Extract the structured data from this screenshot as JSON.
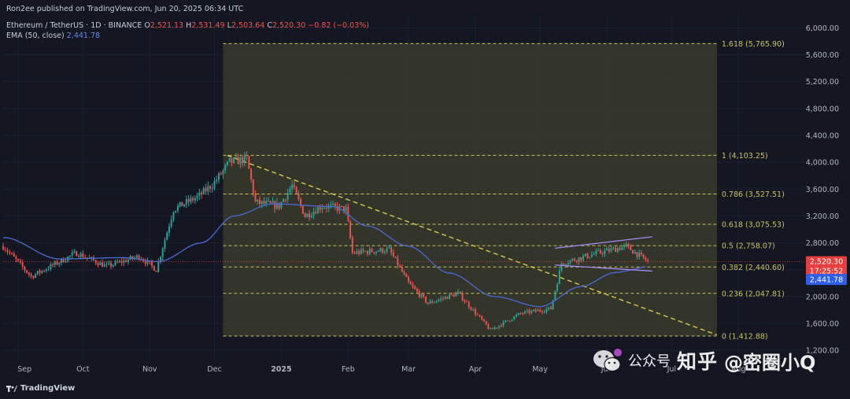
{
  "header": {
    "publish_line": "Ron2ee published on TradingView.com, Jun 20, 2025 06:34 UTC",
    "symbol": "Ethereum / TetherUS · 1D · BINANCE",
    "ohlc": {
      "o_label": "O",
      "o": "2,521.13",
      "h_label": "H",
      "h": "2,531.49",
      "l_label": "L",
      "l": "2,503.64",
      "c_label": "C",
      "c": "2,520.30",
      "change": "−0.82 (−0.03%)"
    },
    "ema_label": "EMA (50, close)",
    "ema_value": "2,441.78"
  },
  "footer": {
    "brand": "TradingView"
  },
  "watermark": {
    "text": "知乎",
    "handle": "@密圈小Q",
    "app": "公众号"
  },
  "colors": {
    "background": "#141722",
    "up": "#26a69a",
    "down": "#ef5350",
    "ema": "#4a6bd6",
    "fib_line": "#c9c35a",
    "fib_box": "#3a3b2c",
    "trend_line": "#d8c84e",
    "channel": "#a78bfa",
    "price_label": "#e83e3e",
    "ema_label": "#2f5ee8"
  },
  "chart_data": {
    "type": "candlestick",
    "title": "Ethereum / TetherUS · 1D · BINANCE",
    "yaxis": {
      "ticks": [
        1200,
        1600,
        2000,
        2400,
        2800,
        3200,
        3600,
        4000,
        4400,
        4800,
        5200,
        5600,
        6000
      ],
      "tick_labels": [
        "1,200.00",
        "1,600.00",
        "2,000.00",
        "2,400.00",
        "2,800.00",
        "3,200.00",
        "3,600.00",
        "4,000.00",
        "4,400.00",
        "4,800.00",
        "5,200.00",
        "5,600.00",
        "6,000.00"
      ],
      "range": [
        1050,
        6180
      ]
    },
    "xaxis": {
      "range": [
        "2024-08-25",
        "2025-08-25"
      ],
      "ticks": [
        {
          "date": "2024-09-01",
          "label": "Sep",
          "bold": false
        },
        {
          "date": "2024-10-01",
          "label": "Oct",
          "bold": false
        },
        {
          "date": "2024-11-01",
          "label": "Nov",
          "bold": false
        },
        {
          "date": "2024-12-01",
          "label": "Dec",
          "bold": false
        },
        {
          "date": "2025-01-01",
          "label": "2025",
          "bold": true
        },
        {
          "date": "2025-02-01",
          "label": "Feb",
          "bold": false
        },
        {
          "date": "2025-03-01",
          "label": "Mar",
          "bold": false
        },
        {
          "date": "2025-04-01",
          "label": "Apr",
          "bold": false
        },
        {
          "date": "2025-05-01",
          "label": "May",
          "bold": false
        },
        {
          "date": "2025-06-01",
          "label": "Jun",
          "bold": false
        },
        {
          "date": "2025-07-01",
          "label": "Jul",
          "bold": false
        },
        {
          "date": "2025-08-01",
          "label": "Aug",
          "bold": false
        }
      ]
    },
    "fibonacci": {
      "start_date": "2024-12-05",
      "end_date": "2025-07-22",
      "levels": [
        {
          "ratio": "0",
          "price": 1412.88,
          "label": "0 (1,412.88)"
        },
        {
          "ratio": "0.236",
          "price": 2047.81,
          "label": "0.236 (2,047.81)"
        },
        {
          "ratio": "0.382",
          "price": 2440.6,
          "label": "0.382 (2,440.60)"
        },
        {
          "ratio": "0.5",
          "price": 2758.07,
          "label": "0.5 (2,758.07)"
        },
        {
          "ratio": "0.618",
          "price": 3075.53,
          "label": "0.618 (3,075.53)"
        },
        {
          "ratio": "0.786",
          "price": 3527.51,
          "label": "0.786 (3,527.51)"
        },
        {
          "ratio": "1",
          "price": 4103.25,
          "label": "1 (4,103.25)"
        },
        {
          "ratio": "1.618",
          "price": 5765.9,
          "label": "1.618 (5,765.90)"
        }
      ]
    },
    "trend_line": {
      "start": [
        "2024-12-07",
        4100
      ],
      "end": [
        "2025-07-22",
        1430
      ]
    },
    "channel": {
      "upper": {
        "start": [
          "2025-05-08",
          2720
        ],
        "end": [
          "2025-06-22",
          2890
        ]
      },
      "lower": {
        "start": [
          "2025-05-08",
          2470
        ],
        "end": [
          "2025-06-22",
          2380
        ]
      }
    },
    "last_price": {
      "value": 2520.3,
      "label": "2,520.30",
      "countdown": "17:25:52"
    },
    "ema_last": {
      "value": 2441.78,
      "label": "2,441.78"
    },
    "price_anchors": [
      [
        "2024-08-25",
        2750
      ],
      [
        "2024-09-07",
        2300
      ],
      [
        "2024-09-28",
        2650
      ],
      [
        "2024-10-12",
        2450
      ],
      [
        "2024-10-27",
        2600
      ],
      [
        "2024-11-04",
        2400
      ],
      [
        "2024-11-12",
        3300
      ],
      [
        "2024-11-24",
        3500
      ],
      [
        "2024-12-01",
        3700
      ],
      [
        "2024-12-08",
        4000
      ],
      [
        "2024-12-16",
        4050
      ],
      [
        "2024-12-20",
        3400
      ],
      [
        "2024-12-31",
        3350
      ],
      [
        "2025-01-06",
        3650
      ],
      [
        "2025-01-12",
        3200
      ],
      [
        "2025-01-20",
        3350
      ],
      [
        "2025-01-31",
        3300
      ],
      [
        "2025-02-03",
        2650
      ],
      [
        "2025-02-20",
        2700
      ],
      [
        "2025-03-01",
        2200
      ],
      [
        "2025-03-10",
        1900
      ],
      [
        "2025-03-24",
        2050
      ],
      [
        "2025-04-08",
        1500
      ],
      [
        "2025-04-22",
        1750
      ],
      [
        "2025-05-06",
        1820
      ],
      [
        "2025-05-11",
        2500
      ],
      [
        "2025-05-28",
        2650
      ],
      [
        "2025-06-10",
        2750
      ],
      [
        "2025-06-20",
        2520
      ]
    ],
    "ema_anchors": [
      [
        "2024-08-25",
        2880
      ],
      [
        "2024-09-20",
        2560
      ],
      [
        "2024-10-20",
        2580
      ],
      [
        "2024-11-05",
        2520
      ],
      [
        "2024-11-25",
        2800
      ],
      [
        "2024-12-10",
        3200
      ],
      [
        "2024-12-28",
        3380
      ],
      [
        "2025-01-25",
        3340
      ],
      [
        "2025-02-10",
        3050
      ],
      [
        "2025-03-01",
        2750
      ],
      [
        "2025-03-20",
        2350
      ],
      [
        "2025-04-10",
        2000
      ],
      [
        "2025-05-01",
        1850
      ],
      [
        "2025-05-20",
        2150
      ],
      [
        "2025-06-05",
        2360
      ],
      [
        "2025-06-20",
        2442
      ]
    ]
  }
}
